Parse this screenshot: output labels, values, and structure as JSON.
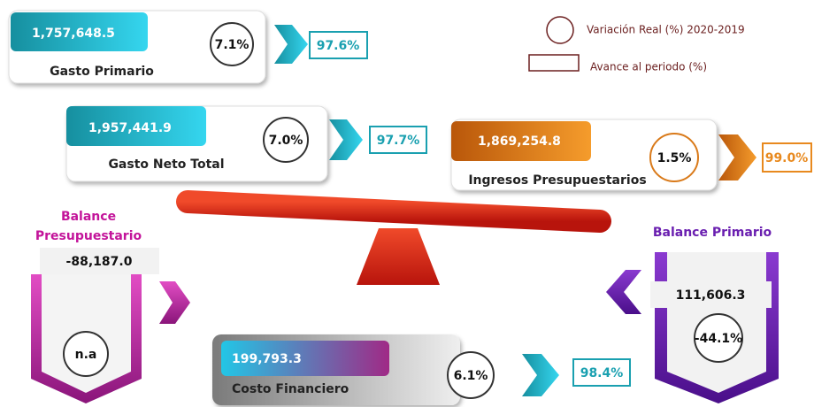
{
  "legend": {
    "variation": "Variación Real (%) 2020-2019",
    "progress": "Avance al periodo (%)"
  },
  "items": [
    {
      "value": "1,757,648.5",
      "title": "Gasto Primario",
      "variation": "7.1%",
      "progress": "97.6%"
    },
    {
      "value": "1,957,441.9",
      "title": "Gasto Neto Total",
      "variation": "7.0%",
      "progress": "97.7%"
    },
    {
      "value": "1,869,254.8",
      "title": "Ingresos Presupuestarios",
      "variation": "1.5%",
      "progress": "99.0%"
    },
    {
      "value": "199,793.3",
      "title": "Costo Financiero",
      "variation": "6.1%",
      "progress": "98.4%"
    }
  ],
  "balances": [
    {
      "title": "Balance Presupuestario",
      "value": "-88,187.0",
      "variation": "n.a"
    },
    {
      "title": "Balance Primario",
      "value": "111,606.3",
      "variation": "-44.1%"
    }
  ]
}
